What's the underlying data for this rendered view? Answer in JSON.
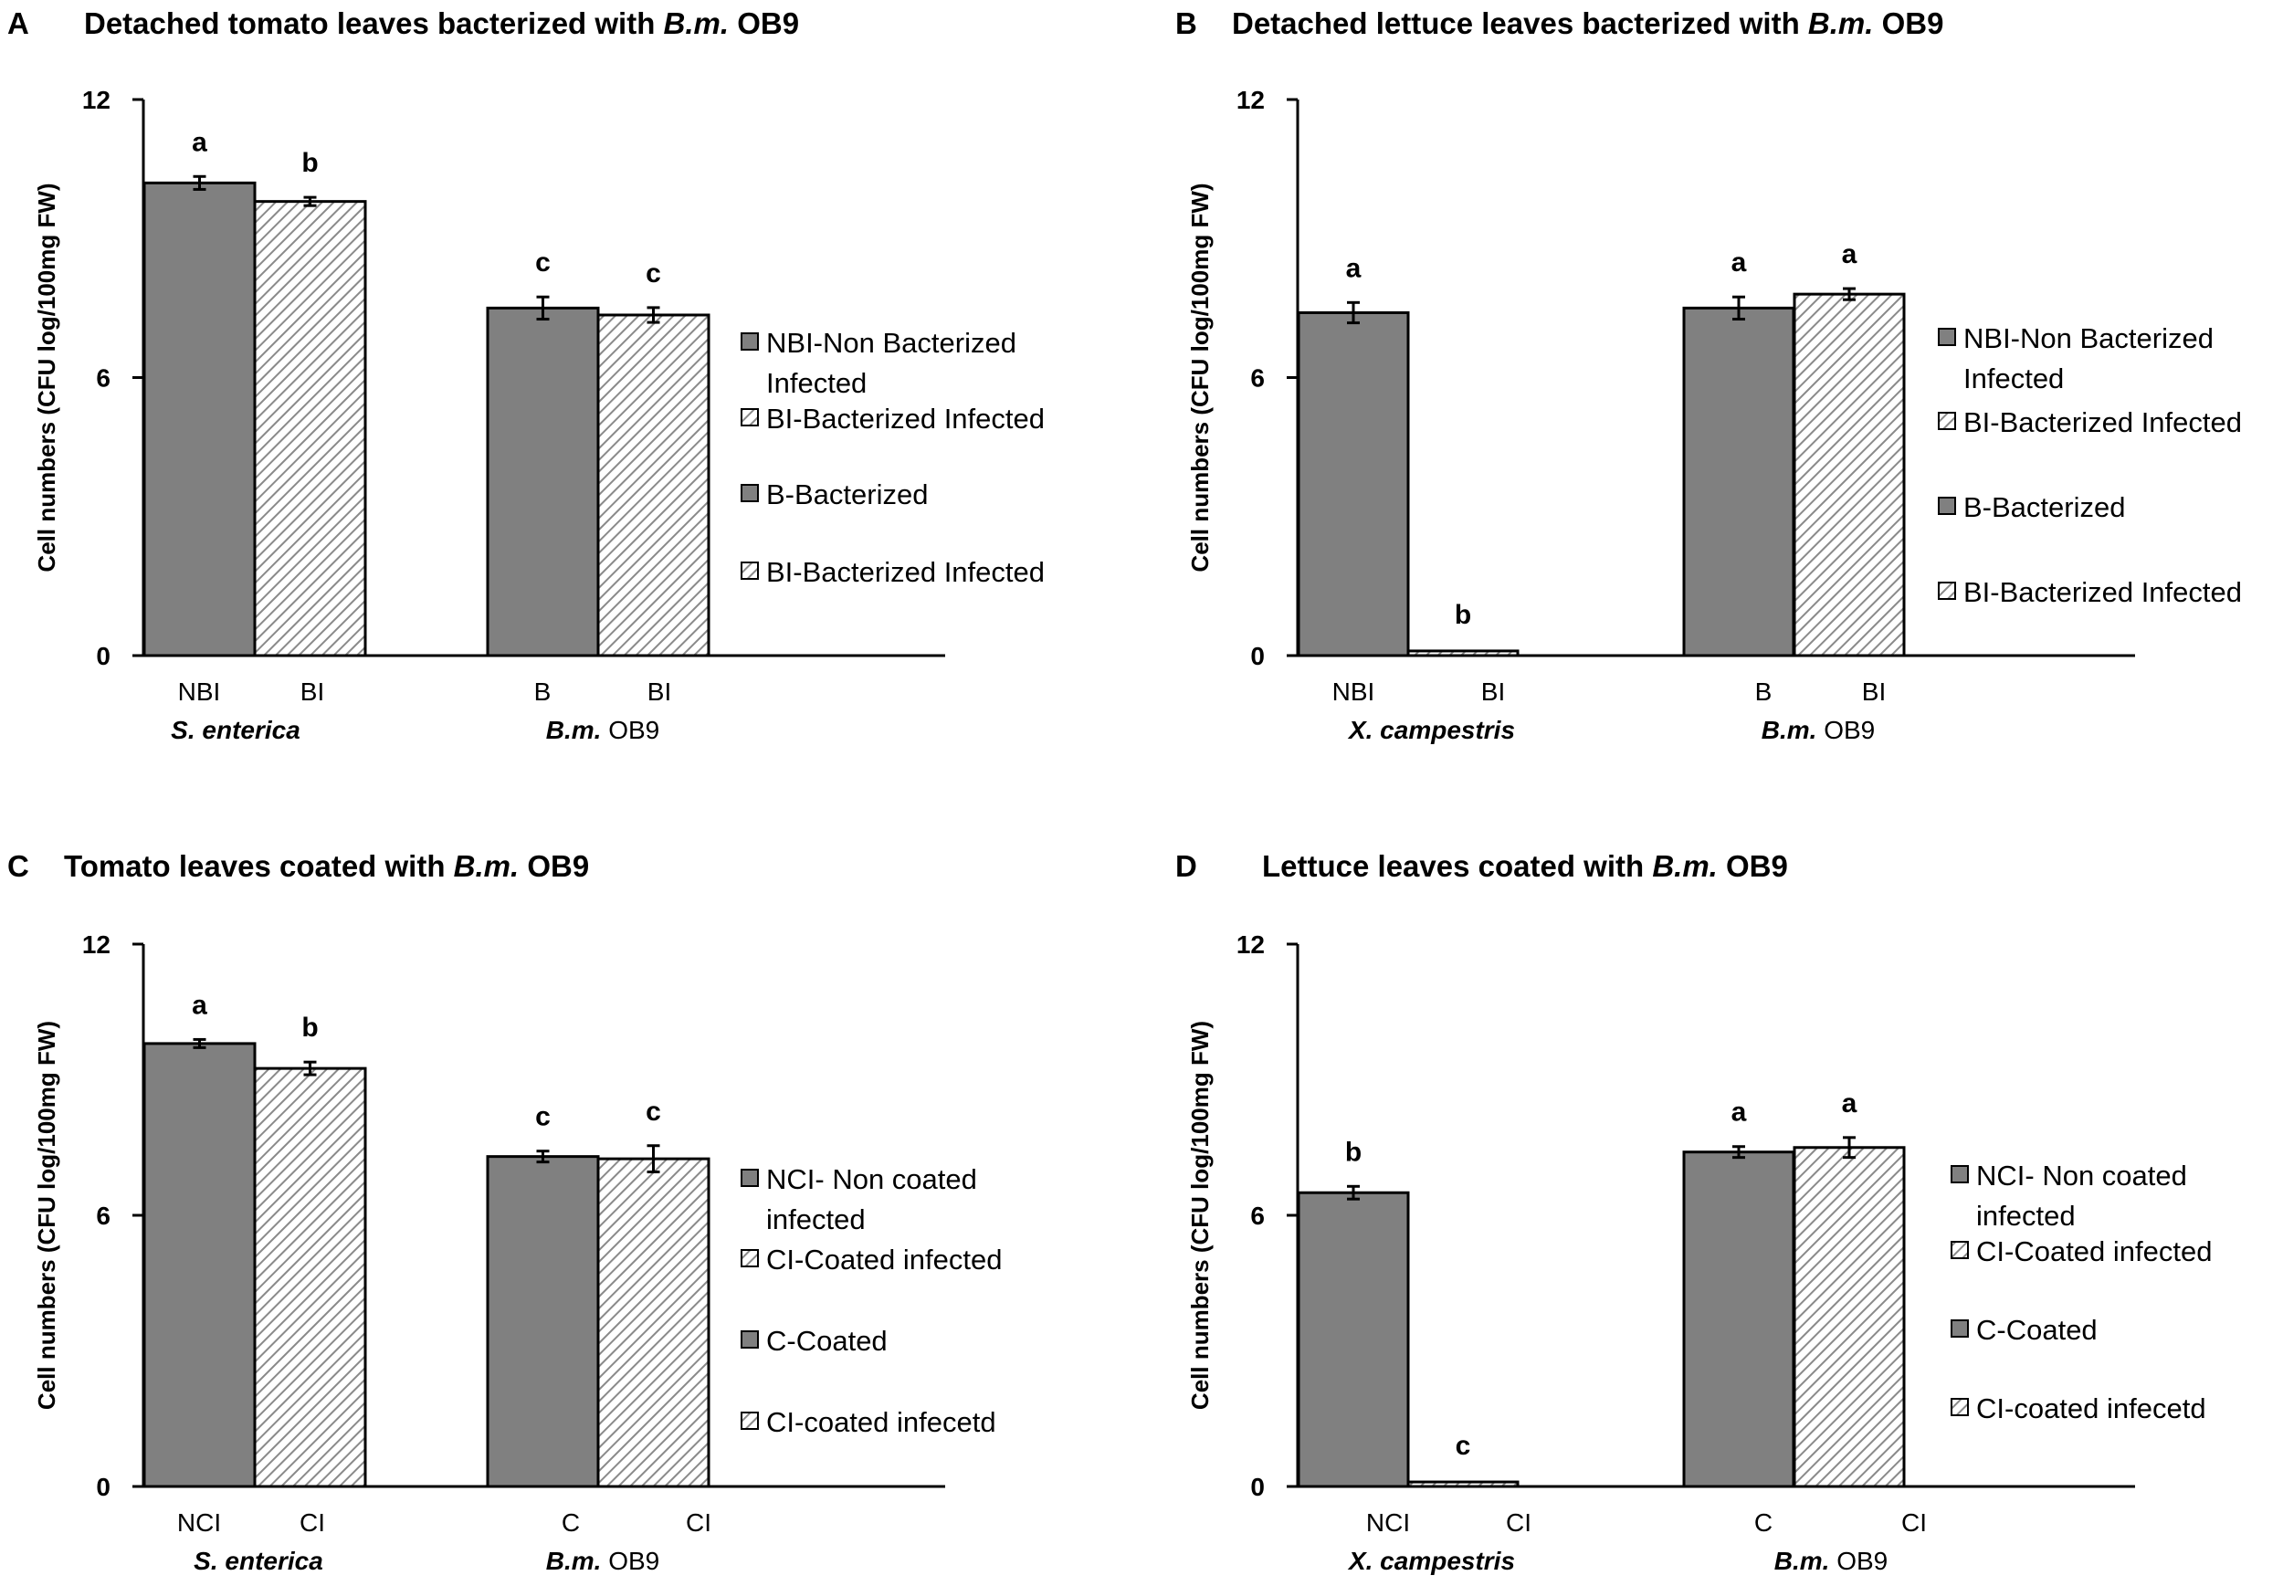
{
  "colors": {
    "bar_solid": "#808080",
    "bar_hatch_line": "#8a8a8a",
    "axis": "#000000"
  },
  "chart_data": [
    {
      "panel": "A",
      "type": "bar",
      "title_prefix": "Detached tomato leaves bacterized with ",
      "title_italic": "B.m.",
      "title_suffix": " OB9",
      "ylabel": "Cell numbers (CFU log/100mg FW)",
      "ylim": [
        0,
        12
      ],
      "yticks": [
        "0",
        "6",
        "12"
      ],
      "groups": [
        {
          "label_italic": "S. enterica",
          "label_normal": "",
          "bars": [
            {
              "category": "NBI",
              "value": 10.2,
              "error": 0.1,
              "sig": "a",
              "pattern": "solid"
            },
            {
              "category": "BI",
              "value": 9.8,
              "error": 0.05,
              "sig": "b",
              "pattern": "hatch"
            }
          ]
        },
        {
          "label_italic": "B.m.",
          "label_normal": " OB9",
          "bars": [
            {
              "category": "B",
              "value": 7.5,
              "error": 0.2,
              "sig": "c",
              "pattern": "solid"
            },
            {
              "category": "BI",
              "value": 7.35,
              "error": 0.12,
              "sig": "c",
              "pattern": "hatch"
            }
          ]
        }
      ],
      "legend": [
        {
          "pattern": "solid",
          "lines": [
            "NBI-Non Bacterized",
            "Infected"
          ]
        },
        {
          "pattern": "hatch",
          "lines": [
            "BI-Bacterized Infected"
          ]
        },
        {
          "pattern": "solid",
          "lines": [
            "B-Bacterized"
          ]
        },
        {
          "pattern": "hatch",
          "lines": [
            "BI-Bacterized Infected"
          ]
        }
      ]
    },
    {
      "panel": "B",
      "type": "bar",
      "title_prefix": "Detached lettuce leaves bacterized with ",
      "title_italic": "B.m.",
      "title_suffix": " OB9",
      "ylabel": "Cell numbers (CFU log/100mg FW)",
      "ylim": [
        0,
        12
      ],
      "yticks": [
        "0",
        "6",
        "12"
      ],
      "groups": [
        {
          "label_italic": "X. campestris",
          "label_normal": "",
          "bars": [
            {
              "category": "NBI",
              "value": 7.4,
              "error": 0.18,
              "sig": "a",
              "pattern": "solid"
            },
            {
              "category": "BI",
              "value": 0.1,
              "error": 0.0,
              "sig": "b",
              "pattern": "hatch"
            }
          ]
        },
        {
          "label_italic": "B.m.",
          "label_normal": " OB9",
          "bars": [
            {
              "category": "B",
              "value": 7.5,
              "error": 0.2,
              "sig": "a",
              "pattern": "solid"
            },
            {
              "category": "BI",
              "value": 7.8,
              "error": 0.08,
              "sig": "a",
              "pattern": "hatch"
            }
          ]
        }
      ],
      "legend": [
        {
          "pattern": "solid",
          "lines": [
            "NBI-Non Bacterized",
            "Infected"
          ]
        },
        {
          "pattern": "hatch",
          "lines": [
            "BI-Bacterized Infected"
          ]
        },
        {
          "pattern": "solid",
          "lines": [
            "B-Bacterized"
          ]
        },
        {
          "pattern": "hatch",
          "lines": [
            "BI-Bacterized Infected"
          ]
        }
      ]
    },
    {
      "panel": "C",
      "type": "bar",
      "title_prefix": "Tomato leaves coated with ",
      "title_italic": "B.m.",
      "title_suffix": " OB9",
      "ylabel": "Cell numbers (CFU log/100mg FW)",
      "ylim": [
        0,
        12
      ],
      "yticks": [
        "0",
        "6",
        "12"
      ],
      "groups": [
        {
          "label_italic": "S. enterica",
          "label_normal": "",
          "bars": [
            {
              "category": "NCI",
              "value": 9.8,
              "error": 0.05,
              "sig": "a",
              "pattern": "solid"
            },
            {
              "category": "CI",
              "value": 9.25,
              "error": 0.1,
              "sig": "b",
              "pattern": "hatch"
            }
          ]
        },
        {
          "label_italic": "B.m.",
          "label_normal": " OB9",
          "bars": [
            {
              "category": "C",
              "value": 7.3,
              "error": 0.08,
              "sig": "c",
              "pattern": "solid"
            },
            {
              "category": "CI",
              "value": 7.25,
              "error": 0.25,
              "sig": "c",
              "pattern": "hatch"
            }
          ]
        }
      ],
      "legend": [
        {
          "pattern": "solid",
          "lines": [
            "NCI- Non coated",
            "infected"
          ]
        },
        {
          "pattern": "hatch",
          "lines": [
            "CI-Coated infected"
          ]
        },
        {
          "pattern": "solid",
          "lines": [
            "C-Coated"
          ]
        },
        {
          "pattern": "hatch",
          "lines": [
            "CI-coated infecetd"
          ]
        }
      ]
    },
    {
      "panel": "D",
      "type": "bar",
      "title_prefix": "Lettuce leaves coated with ",
      "title_italic": "B.m.",
      "title_suffix": " OB9",
      "ylabel": "Cell numbers (CFU log/100mg FW)",
      "ylim": [
        0,
        12
      ],
      "yticks": [
        "0",
        "6",
        "12"
      ],
      "groups": [
        {
          "label_italic": "X. campestris",
          "label_normal": "",
          "bars": [
            {
              "category": "NCI",
              "value": 6.5,
              "error": 0.1,
              "sig": "b",
              "pattern": "solid"
            },
            {
              "category": "CI",
              "value": 0.1,
              "error": 0.0,
              "sig": "c",
              "pattern": "hatch"
            }
          ]
        },
        {
          "label_italic": "B.m.",
          "label_normal": " OB9",
          "bars": [
            {
              "category": "C",
              "value": 7.4,
              "error": 0.08,
              "sig": "a",
              "pattern": "solid"
            },
            {
              "category": "CI",
              "value": 7.5,
              "error": 0.18,
              "sig": "a",
              "pattern": "hatch"
            }
          ]
        }
      ],
      "legend": [
        {
          "pattern": "solid",
          "lines": [
            "NCI- Non coated",
            "infected"
          ]
        },
        {
          "pattern": "hatch",
          "lines": [
            "CI-Coated infected"
          ]
        },
        {
          "pattern": "solid",
          "lines": [
            "C-Coated"
          ]
        },
        {
          "pattern": "hatch",
          "lines": [
            "CI-coated infecetd"
          ]
        }
      ]
    }
  ]
}
